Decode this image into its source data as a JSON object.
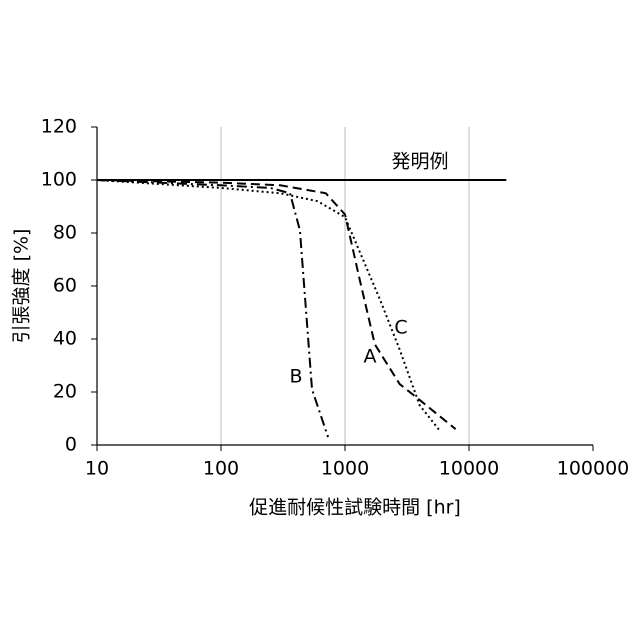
{
  "chart_data": {
    "type": "line",
    "x_label": "促進耐候性試験時間 [hr]",
    "y_label": "引張強度 [%]",
    "xlog": true,
    "xlim": [
      10,
      100000
    ],
    "xticks": [
      10,
      100,
      1000,
      10000,
      100000
    ],
    "ylim": [
      0,
      120
    ],
    "yticks": [
      0,
      20,
      40,
      60,
      80,
      100,
      120
    ],
    "grid": true,
    "series": [
      {
        "name": "発明例",
        "color": "#000000",
        "style": "solid",
        "x": [
          10,
          20000
        ],
        "values": [
          100,
          100
        ]
      },
      {
        "name": "A",
        "color": "#000000",
        "style": "dashed",
        "x": [
          10,
          100,
          300,
          700,
          1000,
          1320,
          1740,
          2760,
          4000,
          7800
        ],
        "values": [
          100,
          99,
          98,
          95,
          87,
          62,
          38,
          23,
          17,
          6
        ]
      },
      {
        "name": "B",
        "color": "#000000",
        "style": "dashdot",
        "x": [
          10,
          100,
          250,
          360,
          433,
          542,
          730
        ],
        "values": [
          100,
          98,
          97,
          95,
          81,
          21,
          3
        ]
      },
      {
        "name": "C",
        "color": "#000000",
        "style": "dotted",
        "x": [
          10,
          100,
          300,
          600,
          1000,
          1910,
          2760,
          4000,
          5900
        ],
        "values": [
          100,
          97,
          95,
          92,
          86,
          55,
          36,
          15,
          5
        ]
      }
    ]
  }
}
